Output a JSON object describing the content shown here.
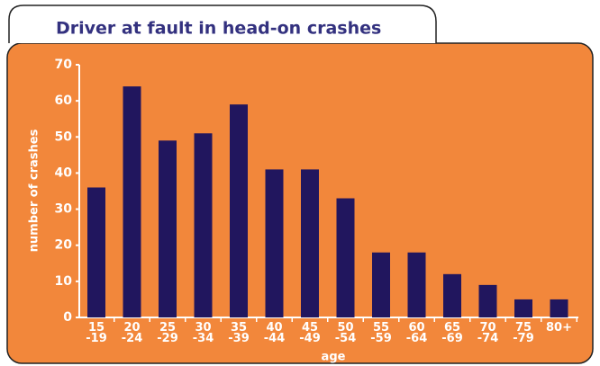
{
  "chart_data": {
    "type": "bar",
    "title": "Driver at fault in head-on crashes",
    "xlabel": "age",
    "ylabel": "number of crashes",
    "categories": [
      "15\n-19",
      "20\n-24",
      "25\n-29",
      "30\n-34",
      "35\n-39",
      "40\n-44",
      "45\n-49",
      "50\n-54",
      "55\n-59",
      "60\n-64",
      "65\n-69",
      "70\n-74",
      "75\n-79",
      "80+"
    ],
    "values": [
      36,
      64,
      49,
      51,
      59,
      41,
      41,
      33,
      18,
      18,
      12,
      9,
      5,
      5
    ],
    "color": "#21165e",
    "ylim": [
      0,
      70
    ],
    "yticks": [
      0,
      10,
      20,
      30,
      40,
      50,
      60,
      70
    ]
  }
}
